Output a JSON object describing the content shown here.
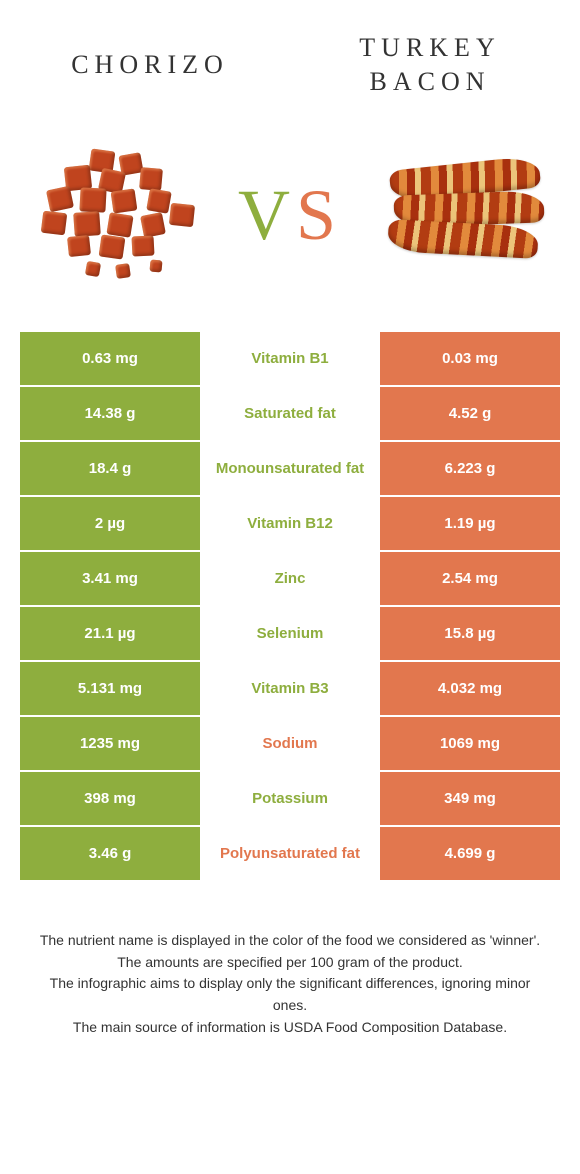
{
  "colors": {
    "left": "#8eae3e",
    "right": "#e2774e",
    "mid_bg": "#ffffff",
    "text_dark": "#333333"
  },
  "header": {
    "left_title": "CHORIZO",
    "right_title": "TURKEY BACON"
  },
  "vs": {
    "v": "V",
    "s": "S"
  },
  "rows": [
    {
      "left": "0.63 mg",
      "mid": "Vitamin B1",
      "right": "0.03 mg",
      "winner": "left"
    },
    {
      "left": "14.38 g",
      "mid": "Saturated fat",
      "right": "4.52 g",
      "winner": "left"
    },
    {
      "left": "18.4 g",
      "mid": "Monounsaturated fat",
      "right": "6.223 g",
      "winner": "left"
    },
    {
      "left": "2 µg",
      "mid": "Vitamin B12",
      "right": "1.19 µg",
      "winner": "left"
    },
    {
      "left": "3.41 mg",
      "mid": "Zinc",
      "right": "2.54 mg",
      "winner": "left"
    },
    {
      "left": "21.1 µg",
      "mid": "Selenium",
      "right": "15.8 µg",
      "winner": "left"
    },
    {
      "left": "5.131 mg",
      "mid": "Vitamin B3",
      "right": "4.032 mg",
      "winner": "left"
    },
    {
      "left": "1235 mg",
      "mid": "Sodium",
      "right": "1069 mg",
      "winner": "right"
    },
    {
      "left": "398 mg",
      "mid": "Potassium",
      "right": "349 mg",
      "winner": "left"
    },
    {
      "left": "3.46 g",
      "mid": "Polyunsaturated fat",
      "right": "4.699 g",
      "winner": "right"
    }
  ],
  "footnotes": [
    "The nutrient name is displayed in the color of the food we considered as 'winner'.",
    "The amounts are specified per 100 gram of the product.",
    "The infographic aims to display only the significant differences, ignoring minor ones.",
    "The main source of information is USDA Food Composition Database."
  ]
}
